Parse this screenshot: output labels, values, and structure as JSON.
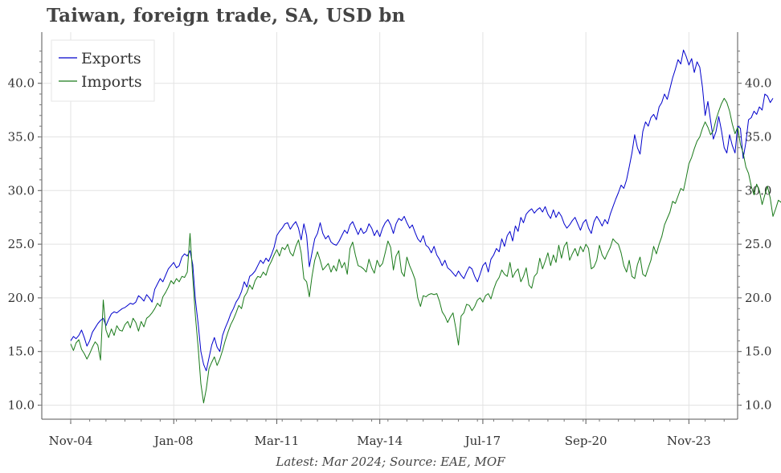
{
  "title": "Taiwan, foreign trade, SA, USD bn",
  "footer": "Latest: Mar 2024; Source: EAE, MOF",
  "colors": {
    "exports": "#0000cc",
    "imports": "#1a7a1a",
    "grid": "#e3e3e3"
  },
  "chart_data": {
    "type": "line",
    "title": "Taiwan, foreign trade, SA, USD bn",
    "xlabel": "",
    "ylabel": "",
    "x_start": "2004-11",
    "x_end": "2024-03",
    "x_frequency": "monthly",
    "xlim": [
      "2004-11",
      "2024-03"
    ],
    "ylim": [
      10.0,
      43.5
    ],
    "x_tick_labels": [
      "Nov-04",
      "Jan-08",
      "Mar-11",
      "May-14",
      "Jul-17",
      "Sep-20",
      "Nov-23"
    ],
    "y_ticks": [
      "10.0",
      "15.0",
      "20.0",
      "25.0",
      "30.0",
      "35.0",
      "40.0"
    ],
    "y_ticks_both_sides": true,
    "grid": true,
    "legend_position": "top-left",
    "series": [
      {
        "name": "Exports",
        "key": "exports",
        "values": [
          16.0,
          16.4,
          16.2,
          16.5,
          17.0,
          16.3,
          15.5,
          16.0,
          16.8,
          17.2,
          17.6,
          17.9,
          18.1,
          17.4,
          18.0,
          18.5,
          18.7,
          18.6,
          18.8,
          19.0,
          19.1,
          19.3,
          19.5,
          19.4,
          19.6,
          20.2,
          20.0,
          19.7,
          20.3,
          20.0,
          19.6,
          20.8,
          21.3,
          21.8,
          21.5,
          22.1,
          22.7,
          23.0,
          23.3,
          22.8,
          23.0,
          23.8,
          24.1,
          23.9,
          24.4,
          23.1,
          19.8,
          17.6,
          15.0,
          13.8,
          13.2,
          14.4,
          15.6,
          16.3,
          15.4,
          15.0,
          16.5,
          17.2,
          17.8,
          18.5,
          19.0,
          19.6,
          20.0,
          20.6,
          21.5,
          21.0,
          22.0,
          22.2,
          22.5,
          23.0,
          23.5,
          23.2,
          23.7,
          23.4,
          24.0,
          24.7,
          25.8,
          26.2,
          26.5,
          26.9,
          27.0,
          26.4,
          26.8,
          27.1,
          26.5,
          25.4,
          26.9,
          25.8,
          22.9,
          24.2,
          25.5,
          26.0,
          27.0,
          26.0,
          25.5,
          25.8,
          25.2,
          25.0,
          24.9,
          25.3,
          25.8,
          26.3,
          26.0,
          26.8,
          27.1,
          26.5,
          25.9,
          26.5,
          26.0,
          26.2,
          26.9,
          26.5,
          25.8,
          26.3,
          25.7,
          26.5,
          27.0,
          27.3,
          26.8,
          26.0,
          26.9,
          27.4,
          27.2,
          27.6,
          27.0,
          26.5,
          26.8,
          26.1,
          25.5,
          25.2,
          25.8,
          24.9,
          24.7,
          24.2,
          24.8,
          24.0,
          23.6,
          23.0,
          23.5,
          22.8,
          22.6,
          22.3,
          22.0,
          22.5,
          22.1,
          21.8,
          22.4,
          22.9,
          22.7,
          22.0,
          21.5,
          22.2,
          23.0,
          23.3,
          22.4,
          23.6,
          24.0,
          24.6,
          24.3,
          25.5,
          24.8,
          25.8,
          26.2,
          25.3,
          26.7,
          26.2,
          27.5,
          27.0,
          27.8,
          28.1,
          28.3,
          27.9,
          28.2,
          28.4,
          28.0,
          28.5,
          27.8,
          27.4,
          28.2,
          27.5,
          28.0,
          27.6,
          26.9,
          26.5,
          26.8,
          27.2,
          27.5,
          26.9,
          26.3,
          27.0,
          27.3,
          26.5,
          26.0,
          27.1,
          27.6,
          27.2,
          26.7,
          27.3,
          26.9,
          27.8,
          28.5,
          29.2,
          29.8,
          30.5,
          30.2,
          31.0,
          32.2,
          33.5,
          35.2,
          34.0,
          33.4,
          35.5,
          36.4,
          36.0,
          36.8,
          37.1,
          36.6,
          37.8,
          38.2,
          39.0,
          38.5,
          39.5,
          40.5,
          41.3,
          42.2,
          41.8,
          43.1,
          42.5,
          41.7,
          42.3,
          41.0,
          42.0,
          41.5,
          39.6,
          37.0,
          38.3,
          36.5,
          34.8,
          35.5,
          36.9,
          35.6,
          34.0,
          33.5,
          35.2,
          34.2,
          33.5,
          36.0,
          35.8,
          33.0,
          34.5,
          36.6,
          36.8,
          37.4,
          37.1,
          37.8,
          37.5,
          39.0,
          38.8,
          38.2,
          38.6
        ]
      },
      {
        "name": "Imports",
        "key": "imports",
        "values": [
          15.7,
          15.1,
          15.8,
          16.1,
          15.2,
          14.8,
          14.3,
          14.8,
          15.4,
          15.9,
          15.6,
          14.2,
          19.8,
          17.0,
          16.3,
          17.1,
          16.5,
          17.4,
          17.0,
          16.9,
          17.5,
          17.8,
          17.2,
          18.1,
          17.7,
          16.9,
          17.8,
          17.3,
          18.1,
          18.3,
          18.6,
          19.0,
          19.5,
          19.2,
          20.1,
          20.5,
          21.0,
          21.6,
          21.3,
          21.8,
          21.5,
          22.0,
          21.9,
          22.4,
          26.0,
          21.9,
          18.3,
          15.4,
          12.0,
          10.2,
          11.5,
          13.4,
          14.0,
          14.5,
          13.7,
          14.3,
          15.1,
          16.0,
          16.8,
          17.5,
          18.0,
          18.6,
          19.3,
          19.0,
          20.1,
          20.5,
          21.2,
          20.8,
          21.6,
          22.0,
          21.9,
          22.4,
          22.1,
          22.9,
          23.4,
          24.0,
          24.5,
          23.9,
          24.7,
          24.5,
          25.0,
          24.2,
          23.9,
          24.8,
          25.4,
          24.2,
          21.8,
          21.5,
          20.1,
          22.0,
          23.5,
          24.3,
          23.5,
          22.6,
          22.9,
          23.2,
          22.4,
          23.0,
          22.5,
          23.6,
          22.8,
          23.3,
          22.2,
          24.6,
          25.2,
          24.0,
          23.0,
          22.9,
          22.7,
          22.4,
          23.6,
          22.8,
          22.3,
          23.5,
          22.9,
          23.2,
          24.2,
          25.3,
          24.7,
          22.6,
          23.9,
          24.4,
          22.4,
          22.0,
          23.8,
          23.0,
          22.4,
          21.7,
          20.0,
          19.2,
          20.2,
          20.1,
          20.3,
          20.4,
          20.3,
          20.4,
          19.7,
          18.7,
          18.3,
          17.7,
          18.2,
          18.6,
          17.2,
          15.6,
          18.3,
          18.6,
          19.4,
          19.3,
          18.8,
          19.2,
          19.8,
          20.0,
          19.6,
          20.2,
          20.4,
          19.9,
          20.8,
          21.5,
          21.9,
          22.6,
          22.2,
          22.0,
          23.3,
          21.9,
          22.4,
          22.7,
          21.5,
          22.0,
          22.8,
          21.2,
          20.9,
          22.0,
          22.3,
          23.7,
          22.7,
          23.4,
          24.2,
          23.0,
          24.0,
          23.3,
          24.9,
          23.7,
          24.8,
          25.2,
          23.5,
          24.1,
          24.6,
          23.9,
          24.8,
          24.3,
          25.0,
          24.6,
          22.7,
          22.9,
          23.5,
          24.9,
          24.0,
          23.6,
          24.2,
          24.7,
          25.5,
          25.2,
          25.0,
          24.2,
          23.0,
          22.4,
          23.5,
          22.0,
          21.8,
          23.1,
          23.8,
          22.2,
          22.0,
          22.8,
          23.5,
          24.8,
          24.1,
          25.0,
          25.7,
          26.8,
          27.4,
          28.0,
          29.0,
          28.8,
          29.5,
          30.2,
          30.0,
          31.2,
          32.5,
          33.1,
          33.9,
          34.6,
          35.0,
          35.8,
          36.4,
          35.9,
          35.2,
          35.6,
          36.6,
          37.4,
          38.1,
          38.6,
          38.2,
          37.4,
          36.2,
          35.3,
          35.9,
          34.3,
          33.5,
          32.2,
          31.6,
          30.4,
          29.6,
          30.6,
          30.0,
          28.7,
          29.6,
          30.4,
          29.3,
          27.6,
          28.3,
          29.1,
          28.9,
          30.1,
          31.1,
          29.6,
          28.9,
          29.5,
          34.4,
          29.4,
          29.3
        ]
      }
    ]
  }
}
